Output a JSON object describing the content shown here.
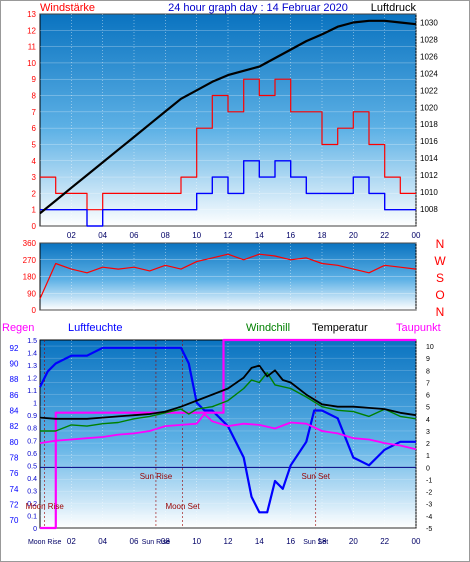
{
  "chart_data": [
    {
      "type": "line",
      "title": "24 hour graph day : 14 Februar 2020",
      "ylabel_left": "Windstärke",
      "ylabel_right": "Luftdruck",
      "x_ticks": [
        "02",
        "04",
        "06",
        "08",
        "10",
        "12",
        "14",
        "16",
        "18",
        "20",
        "22",
        "00"
      ],
      "ylim_left": [
        0,
        13
      ],
      "y_ticks_left": [
        "0",
        "1",
        "2",
        "3",
        "4",
        "5",
        "6",
        "7",
        "8",
        "9",
        "10",
        "11",
        "12",
        "13"
      ],
      "ylim_right": [
        1006,
        1031
      ],
      "y_ticks_right": [
        "1008",
        "1010",
        "1012",
        "1014",
        "1016",
        "1018",
        "1020",
        "1022",
        "1024",
        "1026",
        "1028",
        "1030"
      ],
      "series": [
        {
          "name": "Luftdruck",
          "color": "#000000",
          "axis": "right",
          "x": [
            0,
            1,
            2,
            3,
            4,
            5,
            6,
            7,
            8,
            9,
            10,
            11,
            12,
            13,
            14,
            15,
            16,
            17,
            18,
            19,
            20,
            21,
            22,
            23,
            24
          ],
          "values": [
            1007.5,
            1009,
            1010.5,
            1012,
            1013.5,
            1015,
            1016.5,
            1018,
            1019.5,
            1021,
            1022,
            1023,
            1023.8,
            1024.3,
            1024.8,
            1025.8,
            1026.8,
            1027.8,
            1028.6,
            1029.5,
            1030,
            1030.2,
            1030.2,
            1030,
            1029.8
          ]
        },
        {
          "color": "#ff0000",
          "axis": "left",
          "x": [
            0,
            1,
            2,
            3,
            4,
            5,
            6,
            7,
            8,
            9,
            10,
            11,
            12,
            13,
            14,
            15,
            16,
            17,
            18,
            19,
            20,
            21,
            22,
            23,
            24
          ],
          "values": [
            3,
            2,
            2,
            1,
            2,
            2,
            2,
            2,
            2,
            3,
            6,
            8,
            7,
            9,
            8,
            9,
            7,
            7,
            5,
            6,
            7,
            5,
            3,
            2,
            2
          ]
        },
        {
          "color": "#0000ff",
          "axis": "left",
          "x": [
            0,
            1,
            2,
            3,
            4,
            5,
            6,
            7,
            8,
            9,
            10,
            11,
            12,
            13,
            14,
            15,
            16,
            17,
            18,
            19,
            20,
            21,
            22,
            23,
            24
          ],
          "values": [
            1,
            1,
            1,
            0,
            1,
            1,
            1,
            1,
            1,
            1,
            2,
            3,
            2,
            4,
            3,
            4,
            3,
            2,
            2,
            2,
            3,
            2,
            1,
            1,
            1
          ]
        }
      ]
    },
    {
      "type": "line",
      "ylim": [
        0,
        360
      ],
      "y_ticks": [
        "0",
        "90",
        "180",
        "270",
        "360"
      ],
      "compass": [
        "N",
        "W",
        "S",
        "O",
        "N"
      ],
      "series": [
        {
          "color": "#ff0000",
          "x": [
            0,
            1,
            2,
            3,
            4,
            5,
            6,
            7,
            8,
            9,
            10,
            11,
            12,
            13,
            14,
            15,
            16,
            17,
            18,
            19,
            20,
            21,
            22,
            23,
            24
          ],
          "values": [
            60,
            250,
            220,
            200,
            230,
            220,
            230,
            210,
            240,
            220,
            260,
            280,
            300,
            270,
            300,
            290,
            270,
            280,
            250,
            240,
            220,
            200,
            240,
            230,
            220
          ]
        }
      ]
    },
    {
      "type": "line",
      "labels": [
        "Regen",
        "Luftfeuchte",
        "Windchill",
        "Temperatur",
        "Taupunkt"
      ],
      "x_ticks": [
        "02",
        "04",
        "06",
        "08",
        "10",
        "12",
        "14",
        "16",
        "18",
        "20",
        "22",
        "00"
      ],
      "ylim_hum": [
        69,
        93
      ],
      "y_ticks_hum": [
        "70",
        "72",
        "74",
        "76",
        "78",
        "80",
        "82",
        "84",
        "86",
        "88",
        "90",
        "92"
      ],
      "ylim_rain": [
        0,
        1.5
      ],
      "y_ticks_rain": [
        "0",
        "0.1",
        "0.2",
        "0.3",
        "0.4",
        "0.5",
        "0.6",
        "0.7",
        "0.8",
        "0.9",
        "1",
        "1.1",
        "1.2",
        "1.3",
        "1.4",
        "1.5"
      ],
      "ylim_temp": [
        -5,
        10.5
      ],
      "y_ticks_temp": [
        "-5",
        "-4",
        "-3",
        "-2",
        "-1",
        "0",
        "1",
        "2",
        "3",
        "4",
        "5",
        "6",
        "7",
        "8",
        "9",
        "10"
      ],
      "annotations": [
        {
          "text": "Moon Rise",
          "x": 0.3,
          "y_frac": 0.1
        },
        {
          "text": "Sun Rise",
          "x": 7.4,
          "y_frac": 0.26
        },
        {
          "text": "Moon Set",
          "x": 9.1,
          "y_frac": 0.1
        },
        {
          "text": "Sun Set",
          "x": 17.6,
          "y_frac": 0.26
        }
      ],
      "bottom_labels": [
        {
          "text": "Moon Rise",
          "x": 0.3
        },
        {
          "text": "Sun Rise",
          "x": 7.4
        },
        {
          "text": "Sun Set",
          "x": 17.6
        }
      ],
      "series": [
        {
          "name": "Luftfeuchte",
          "color": "#0000ff",
          "axis": "hum",
          "x": [
            0,
            0.5,
            1,
            2,
            3,
            4,
            5,
            6,
            7,
            8,
            9,
            9.5,
            10,
            10.5,
            11,
            12,
            12.5,
            13,
            13.5,
            14,
            14.5,
            15,
            15.5,
            16,
            17,
            17.5,
            18,
            19,
            20,
            21,
            22,
            23,
            24
          ],
          "values": [
            87,
            89,
            90,
            91,
            91,
            92,
            92,
            92,
            92,
            92,
            92,
            90,
            85,
            84,
            84,
            82,
            80,
            78,
            73,
            71,
            71,
            75,
            74,
            77,
            80,
            84,
            84,
            83,
            78,
            77,
            79,
            80,
            80
          ]
        },
        {
          "name": "Windchill",
          "color": "#008000",
          "axis": "temp",
          "x": [
            0,
            1,
            2,
            3,
            4,
            5,
            6,
            7,
            8,
            9,
            9.5,
            10,
            11,
            12,
            13,
            13.5,
            14,
            14.5,
            15,
            16,
            17,
            18,
            19,
            20,
            21,
            22,
            23,
            24
          ],
          "values": [
            3,
            3,
            3.5,
            3.4,
            3.6,
            3.7,
            4,
            4.2,
            4.5,
            4.8,
            4.4,
            4.8,
            5,
            5.5,
            6.5,
            7.2,
            7,
            7.8,
            6.8,
            6.5,
            5.8,
            5,
            4.7,
            4.6,
            4.2,
            4.8,
            4.2,
            4
          ]
        },
        {
          "name": "Temperatur",
          "color": "#000000",
          "axis": "temp",
          "x": [
            0,
            1,
            2,
            3,
            4,
            5,
            6,
            7,
            8,
            9,
            10,
            11,
            12,
            13,
            13.5,
            14,
            14.5,
            15,
            15.5,
            16,
            17,
            18,
            19,
            20,
            21,
            22,
            23,
            24
          ],
          "values": [
            4.1,
            4,
            4,
            4,
            4.1,
            4.2,
            4.3,
            4.4,
            4.6,
            5,
            5.5,
            6,
            6.5,
            7.4,
            8.2,
            8.4,
            7.5,
            8,
            7.2,
            7,
            6,
            5.2,
            5,
            5,
            4.9,
            4.8,
            4.5,
            4.3
          ]
        },
        {
          "name": "Taupunkt",
          "color": "#ff00ff",
          "axis": "temp",
          "x": [
            0,
            1,
            2,
            3,
            4,
            5,
            6,
            7,
            8,
            9,
            10,
            10.5,
            11,
            12,
            13,
            14,
            15,
            16,
            17,
            18,
            19,
            20,
            21,
            22,
            23,
            24
          ],
          "values": [
            2,
            2.2,
            2.3,
            2.4,
            2.5,
            2.7,
            2.8,
            3,
            3.4,
            3.5,
            3.6,
            4.4,
            3.8,
            3.4,
            3.6,
            3.5,
            3.2,
            3.7,
            3.6,
            3,
            2.8,
            2.4,
            2.3,
            2,
            1.8,
            1.5
          ]
        },
        {
          "name": "Regen",
          "color": "#ff00ff",
          "axis": "rain",
          "x": [
            0,
            1,
            1.01,
            5,
            9,
            10,
            11,
            11.7,
            11.71,
            13,
            24
          ],
          "values": [
            0,
            0,
            0.92,
            0.92,
            0.92,
            0.92,
            0.92,
            0.92,
            1.5,
            1.5,
            1.5
          ]
        }
      ]
    }
  ]
}
